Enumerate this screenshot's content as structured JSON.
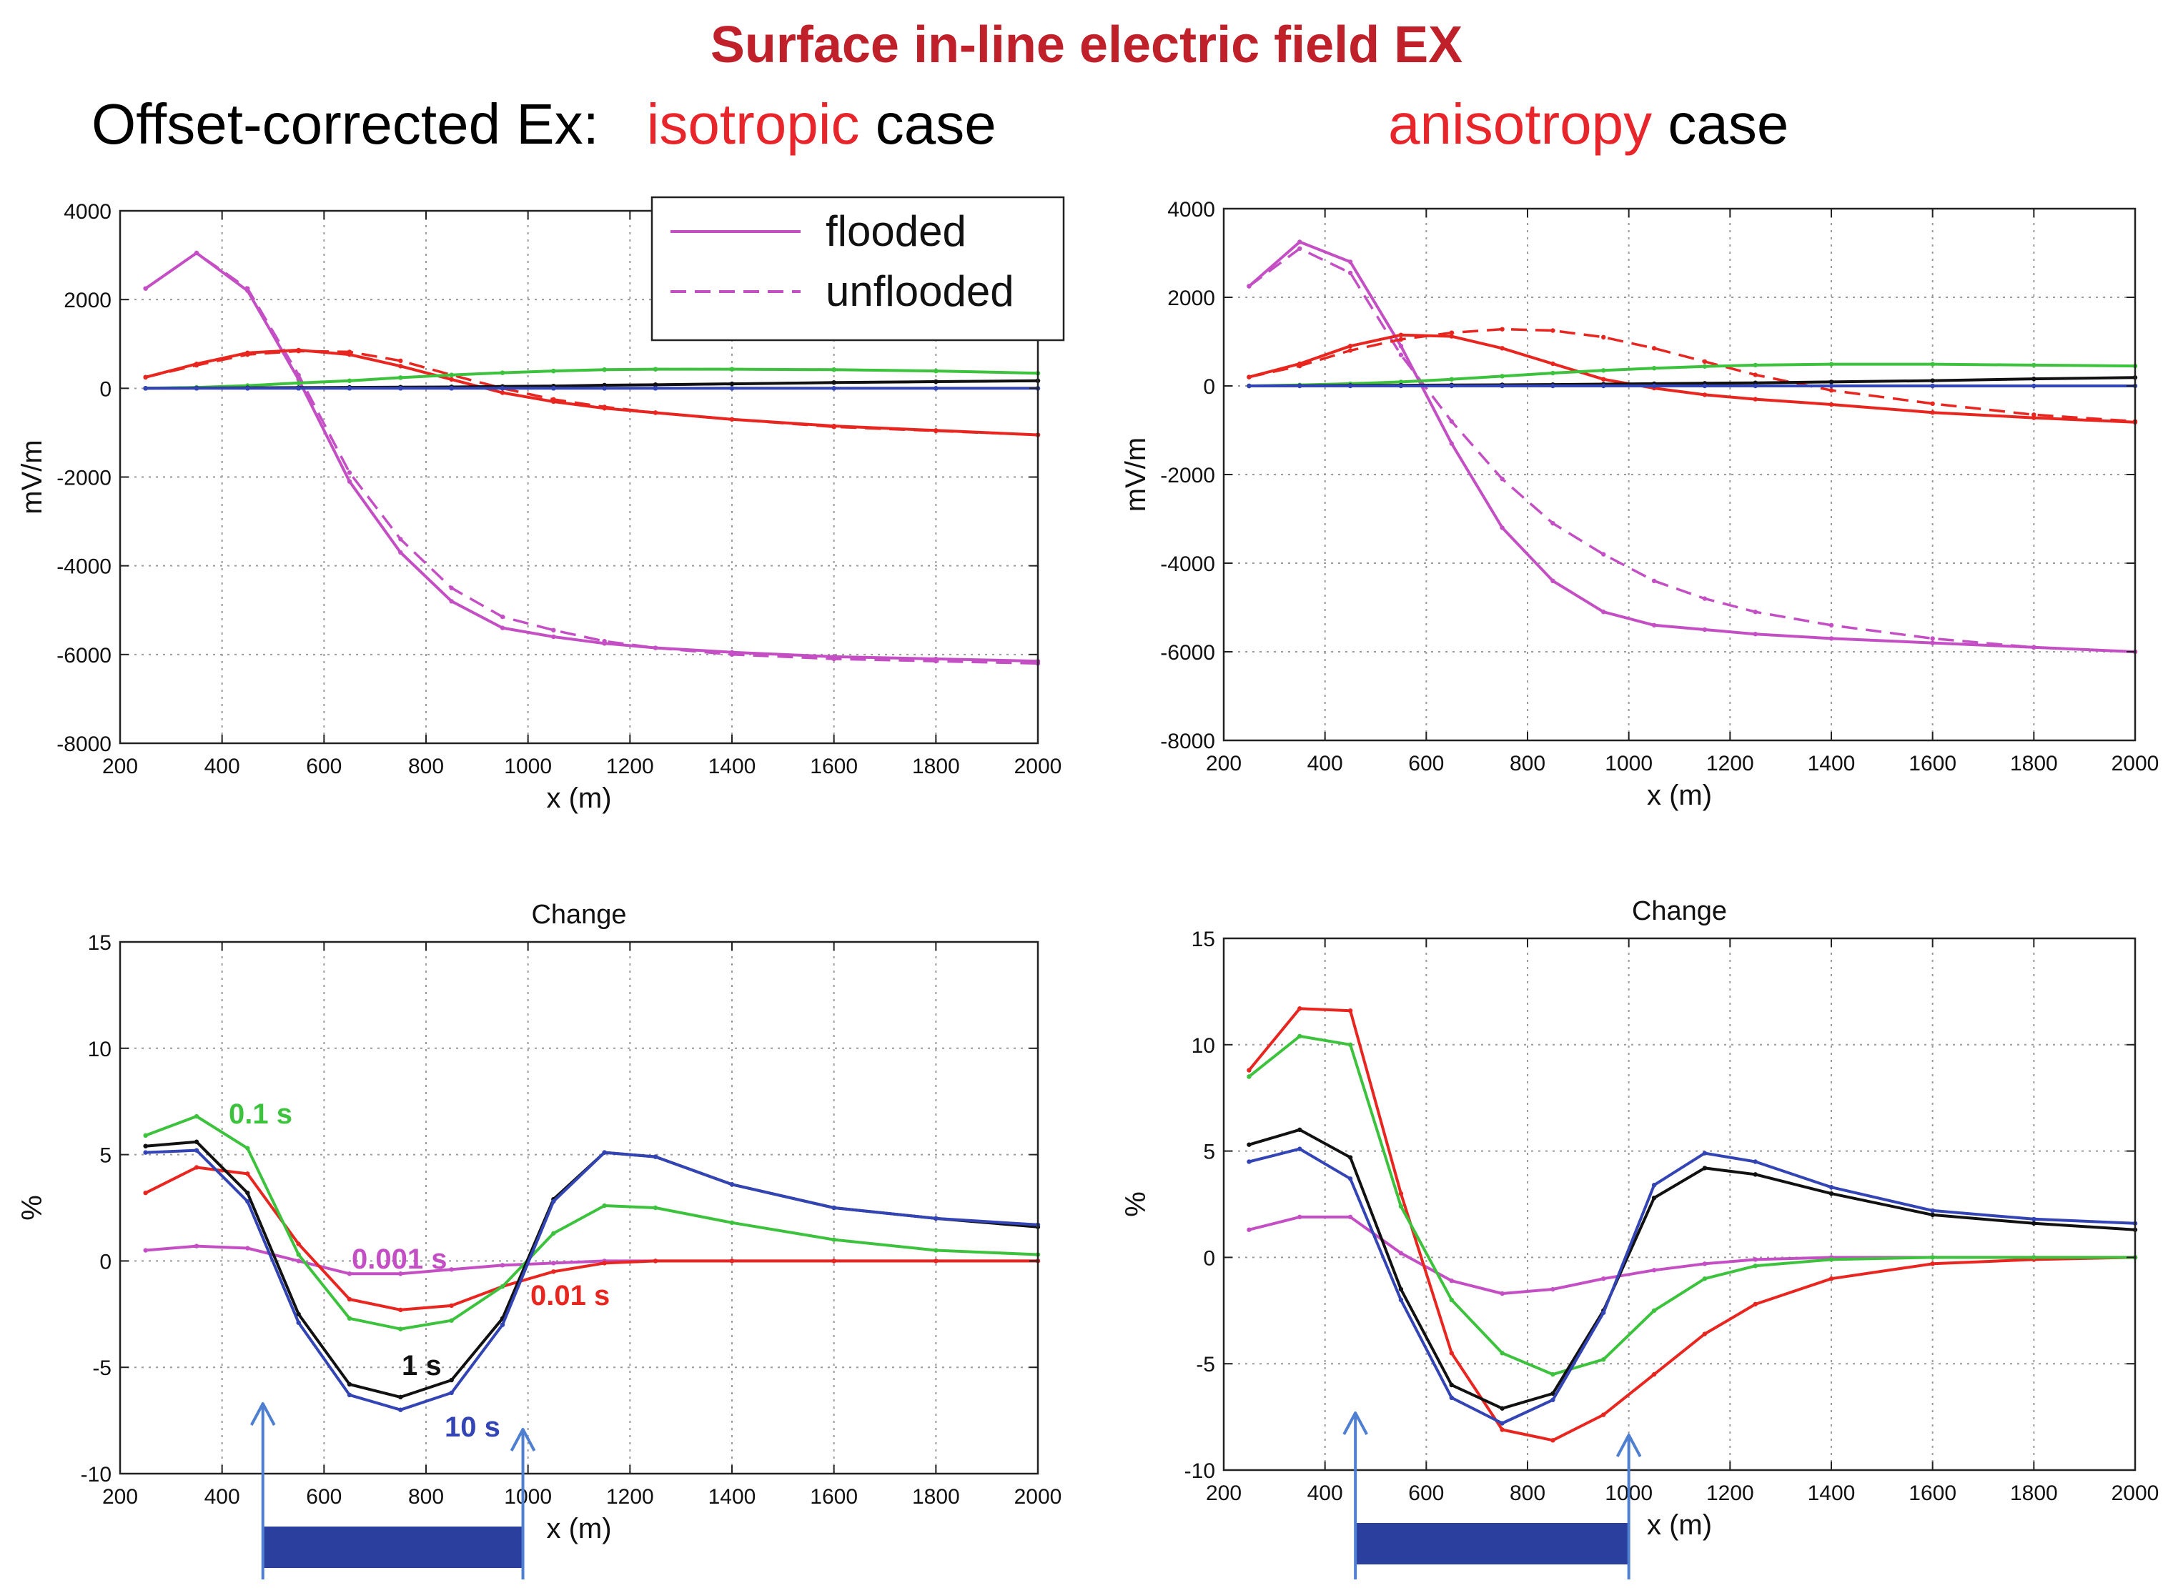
{
  "title": "Surface in-line  electric field EX",
  "subheads": {
    "left_prefix": "Offset-corrected Ex:",
    "left_highlight": "isotropic",
    "left_suffix": " case",
    "right_highlight": "anisotropy",
    "right_suffix": " case"
  },
  "colors": {
    "magenta": "#c44fc4",
    "red": "#e8251f",
    "green": "#3cc23c",
    "black": "#111111",
    "blue": "#3344b5",
    "arrow": "#4f7fd0",
    "bar": "#2b3f9e"
  },
  "chart_data": [
    {
      "id": "top-left",
      "type": "line",
      "title": "",
      "xlabel": "x (m)",
      "ylabel": "mV/m",
      "xlim": [
        200,
        2000
      ],
      "ylim": [
        -8000,
        4000
      ],
      "xticks": [
        200,
        400,
        600,
        800,
        1000,
        1200,
        1400,
        1600,
        1800,
        2000
      ],
      "yticks": [
        -8000,
        -6000,
        -4000,
        -2000,
        0,
        2000,
        4000
      ],
      "grid": true,
      "legend": {
        "placement": "top-right",
        "entries": [
          {
            "label": "flooded",
            "style": "solid"
          },
          {
            "label": "unflooded",
            "style": "dashed"
          }
        ]
      },
      "x": [
        250,
        350,
        450,
        550,
        650,
        750,
        850,
        950,
        1050,
        1150,
        1250,
        1400,
        1600,
        1800,
        2000
      ],
      "series": [
        {
          "name": "magenta-flooded",
          "color": "magenta",
          "style": "solid",
          "values": [
            2250,
            3050,
            2200,
            200,
            -2100,
            -3700,
            -4800,
            -5400,
            -5600,
            -5750,
            -5850,
            -5950,
            -6050,
            -6100,
            -6150
          ]
        },
        {
          "name": "magenta-unflooded",
          "color": "magenta",
          "style": "dashed",
          "values": [
            2250,
            3050,
            2250,
            300,
            -1900,
            -3400,
            -4500,
            -5150,
            -5450,
            -5700,
            -5850,
            -6000,
            -6100,
            -6150,
            -6200
          ]
        },
        {
          "name": "red-flooded",
          "color": "red",
          "style": "solid",
          "values": [
            250,
            550,
            800,
            860,
            760,
            500,
            200,
            -100,
            -300,
            -450,
            -550,
            -700,
            -850,
            -950,
            -1050
          ]
        },
        {
          "name": "red-unflooded",
          "color": "red",
          "style": "dashed",
          "values": [
            250,
            520,
            760,
            840,
            820,
            620,
            300,
            0,
            -250,
            -420,
            -550,
            -700,
            -870,
            -960,
            -1050
          ]
        },
        {
          "name": "green-flooded",
          "color": "green",
          "style": "solid",
          "values": [
            0,
            20,
            60,
            120,
            170,
            240,
            300,
            350,
            390,
            420,
            430,
            430,
            420,
            390,
            340
          ]
        },
        {
          "name": "green-unflooded",
          "color": "green",
          "style": "dashed",
          "values": [
            0,
            20,
            60,
            120,
            170,
            240,
            300,
            350,
            390,
            420,
            430,
            430,
            420,
            390,
            340
          ]
        },
        {
          "name": "black-flooded",
          "color": "black",
          "style": "solid",
          "values": [
            0,
            5,
            10,
            15,
            20,
            25,
            30,
            40,
            50,
            70,
            80,
            100,
            130,
            150,
            170
          ]
        },
        {
          "name": "black-unflooded",
          "color": "black",
          "style": "dashed",
          "values": [
            0,
            5,
            10,
            15,
            20,
            25,
            30,
            40,
            50,
            70,
            80,
            100,
            130,
            150,
            170
          ]
        },
        {
          "name": "blue-flooded",
          "color": "blue",
          "style": "solid",
          "values": [
            0,
            0,
            0,
            0,
            0,
            0,
            0,
            0,
            0,
            0,
            0,
            0,
            0,
            0,
            0
          ]
        },
        {
          "name": "blue-unflooded",
          "color": "blue",
          "style": "dashed",
          "values": [
            0,
            0,
            0,
            0,
            0,
            0,
            0,
            0,
            0,
            0,
            0,
            0,
            0,
            0,
            0
          ]
        }
      ]
    },
    {
      "id": "top-right",
      "type": "line",
      "title": "",
      "xlabel": "x (m)",
      "ylabel": "mV/m",
      "xlim": [
        200,
        2000
      ],
      "ylim": [
        -8000,
        4000
      ],
      "xticks": [
        200,
        400,
        600,
        800,
        1000,
        1200,
        1400,
        1600,
        1800,
        2000
      ],
      "yticks": [
        -8000,
        -6000,
        -4000,
        -2000,
        0,
        2000,
        4000
      ],
      "grid": true,
      "x": [
        250,
        350,
        450,
        550,
        650,
        750,
        850,
        950,
        1050,
        1150,
        1250,
        1400,
        1600,
        1800,
        2000
      ],
      "series": [
        {
          "name": "magenta-flooded",
          "color": "magenta",
          "style": "solid",
          "values": [
            2250,
            3250,
            2800,
            900,
            -1300,
            -3200,
            -4400,
            -5100,
            -5400,
            -5500,
            -5600,
            -5700,
            -5800,
            -5900,
            -6000
          ]
        },
        {
          "name": "magenta-unflooded",
          "color": "magenta",
          "style": "dashed",
          "values": [
            2250,
            3100,
            2550,
            700,
            -800,
            -2100,
            -3100,
            -3800,
            -4400,
            -4800,
            -5100,
            -5400,
            -5700,
            -5900,
            -6000
          ]
        },
        {
          "name": "red-flooded",
          "color": "red",
          "style": "solid",
          "values": [
            200,
            500,
            900,
            1150,
            1120,
            850,
            500,
            150,
            -50,
            -200,
            -300,
            -420,
            -600,
            -720,
            -820
          ]
        },
        {
          "name": "red-unflooded",
          "color": "red",
          "style": "dashed",
          "values": [
            200,
            450,
            800,
            1050,
            1200,
            1280,
            1250,
            1100,
            850,
            550,
            250,
            -100,
            -400,
            -650,
            -800
          ]
        },
        {
          "name": "green-flooded",
          "color": "green",
          "style": "solid",
          "values": [
            0,
            20,
            50,
            90,
            150,
            220,
            290,
            350,
            400,
            440,
            470,
            490,
            490,
            470,
            450
          ]
        },
        {
          "name": "black-flooded",
          "color": "black",
          "style": "solid",
          "values": [
            0,
            5,
            10,
            15,
            20,
            25,
            30,
            40,
            50,
            60,
            70,
            90,
            120,
            160,
            190
          ]
        },
        {
          "name": "blue-flooded",
          "color": "blue",
          "style": "solid",
          "values": [
            0,
            0,
            0,
            0,
            0,
            0,
            0,
            0,
            0,
            0,
            0,
            0,
            0,
            0,
            0
          ]
        }
      ]
    },
    {
      "id": "bottom-left",
      "type": "line",
      "title": "Change",
      "xlabel": "x (m)",
      "ylabel": "%",
      "xlim": [
        200,
        2000
      ],
      "ylim": [
        -10,
        15
      ],
      "xticks": [
        200,
        400,
        600,
        800,
        1000,
        1200,
        1400,
        1600,
        1800,
        2000
      ],
      "yticks": [
        -10,
        -5,
        0,
        5,
        10,
        15
      ],
      "grid": true,
      "x": [
        250,
        350,
        450,
        550,
        650,
        750,
        850,
        950,
        1050,
        1150,
        1250,
        1400,
        1600,
        1800,
        2000
      ],
      "series": [
        {
          "name": "0.001 s",
          "color": "magenta",
          "values": [
            0.5,
            0.7,
            0.6,
            0.0,
            -0.6,
            -0.6,
            -0.4,
            -0.2,
            -0.1,
            0.0,
            0.0,
            0.0,
            0.0,
            0.0,
            0.0
          ]
        },
        {
          "name": "0.01 s",
          "color": "red",
          "values": [
            3.2,
            4.4,
            4.1,
            0.8,
            -1.8,
            -2.3,
            -2.1,
            -1.2,
            -0.5,
            -0.1,
            0.0,
            0.0,
            0.0,
            0.0,
            0.0
          ]
        },
        {
          "name": "0.1 s",
          "color": "green",
          "values": [
            5.9,
            6.8,
            5.3,
            0.3,
            -2.7,
            -3.2,
            -2.8,
            -1.2,
            1.3,
            2.6,
            2.5,
            1.8,
            1.0,
            0.5,
            0.3
          ]
        },
        {
          "name": "1 s",
          "color": "black",
          "values": [
            5.4,
            5.6,
            3.2,
            -2.5,
            -5.8,
            -6.4,
            -5.6,
            -2.7,
            2.9,
            5.1,
            4.9,
            3.6,
            2.5,
            2.0,
            1.6
          ]
        },
        {
          "name": "10 s",
          "color": "blue",
          "values": [
            5.1,
            5.2,
            2.8,
            -2.9,
            -6.3,
            -7.0,
            -6.2,
            -3.0,
            2.8,
            5.1,
            4.9,
            3.6,
            2.5,
            2.0,
            1.7
          ]
        }
      ],
      "annotations": [
        "0.1 s",
        "0.001 s",
        "0.01 s",
        "1 s",
        "10 s"
      ],
      "region": {
        "x_start": 480,
        "x_end": 990
      }
    },
    {
      "id": "bottom-right",
      "type": "line",
      "title": "Change",
      "xlabel": "x (m)",
      "ylabel": "%",
      "xlim": [
        200,
        2000
      ],
      "ylim": [
        -10,
        15
      ],
      "xticks": [
        200,
        400,
        600,
        800,
        1000,
        1200,
        1400,
        1600,
        1800,
        2000
      ],
      "yticks": [
        -10,
        -5,
        0,
        5,
        10,
        15
      ],
      "grid": true,
      "x": [
        250,
        350,
        450,
        550,
        650,
        750,
        850,
        950,
        1050,
        1150,
        1250,
        1400,
        1600,
        1800,
        2000
      ],
      "series": [
        {
          "name": "0.001 s",
          "color": "magenta",
          "values": [
            1.3,
            1.9,
            1.9,
            0.2,
            -1.1,
            -1.7,
            -1.5,
            -1.0,
            -0.6,
            -0.3,
            -0.1,
            0.0,
            0.0,
            0.0,
            0.0
          ]
        },
        {
          "name": "0.01 s",
          "color": "red",
          "values": [
            8.8,
            11.7,
            11.6,
            3.0,
            -4.5,
            -8.1,
            -8.6,
            -7.4,
            -5.5,
            -3.6,
            -2.2,
            -1.0,
            -0.3,
            -0.1,
            0.0
          ]
        },
        {
          "name": "0.1 s",
          "color": "green",
          "values": [
            8.5,
            10.4,
            10.0,
            2.4,
            -2.0,
            -4.5,
            -5.5,
            -4.8,
            -2.5,
            -1.0,
            -0.4,
            -0.1,
            0.0,
            0.0,
            0.0
          ]
        },
        {
          "name": "1 s",
          "color": "black",
          "values": [
            5.3,
            6.0,
            4.7,
            -1.5,
            -6.0,
            -7.1,
            -6.4,
            -2.5,
            2.8,
            4.2,
            3.9,
            3.0,
            2.0,
            1.6,
            1.3
          ]
        },
        {
          "name": "10 s",
          "color": "blue",
          "values": [
            4.5,
            5.1,
            3.7,
            -2.0,
            -6.6,
            -7.8,
            -6.7,
            -2.6,
            3.4,
            4.9,
            4.5,
            3.3,
            2.2,
            1.8,
            1.6
          ]
        }
      ],
      "region": {
        "x_start": 460,
        "x_end": 1000
      }
    }
  ]
}
